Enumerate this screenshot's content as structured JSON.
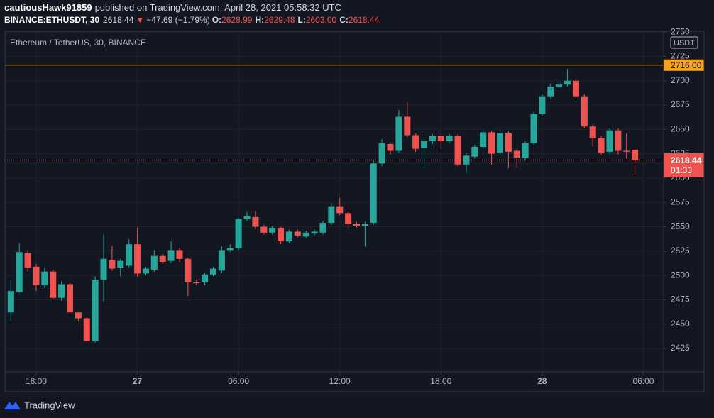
{
  "header": {
    "byline": "cautiousHawk91859",
    "published": "published on TradingView.com, April 28, 2021 05:58:32 UTC",
    "symbol": "BINANCE:ETHUSDT, 30",
    "last": "2618.44",
    "arrow": "▼",
    "change": "−47.69 (−1.79%)",
    "o_label": "O:",
    "o_value": "2628.99",
    "h_label": "H:",
    "h_value": "2629.48",
    "l_label": "L:",
    "l_value": "2603.00",
    "c_label": "C:",
    "c_value": "2618.44"
  },
  "chart_data": {
    "type": "candlestick",
    "title": "Ethereum / TetherUS, 30, BINANCE",
    "y_unit": "USDT",
    "categories": [
      null,
      null,
      null,
      null,
      null,
      null,
      null,
      null,
      null,
      null,
      null,
      null,
      null,
      null,
      null,
      null,
      null,
      null,
      null,
      null,
      null,
      null,
      null,
      null,
      null,
      null,
      null,
      null,
      null,
      null,
      null,
      null,
      null,
      null,
      null,
      null,
      null,
      null,
      null,
      null,
      null,
      null,
      null,
      null,
      null,
      null,
      null,
      null,
      null,
      null,
      null,
      null,
      null,
      null,
      null,
      null,
      null,
      null,
      null,
      null,
      null,
      null,
      null,
      null,
      null,
      null,
      null,
      null,
      null,
      null,
      null,
      null,
      null,
      null,
      null
    ],
    "open": [
      2462,
      2483,
      2523,
      2509,
      2490,
      2504,
      2477,
      2491,
      2462,
      2456,
      2433,
      2495,
      2516,
      2508,
      2510,
      2532,
      2502,
      2506,
      2520,
      2515,
      2526,
      2517,
      2493,
      2493,
      2501,
      2505,
      2526,
      2528,
      2558,
      2560,
      2550,
      2544,
      2549,
      2535,
      2545,
      2540,
      2543,
      2544,
      2554,
      2571,
      2564,
      2553,
      2551,
      2554,
      2615,
      2635,
      2628,
      2663,
      2644,
      2631,
      2638,
      2643,
      2638,
      2643,
      2614,
      2622,
      2632,
      2647,
      2626,
      2646,
      2628,
      2621,
      2636,
      2666,
      2684,
      2694,
      2696,
      2700,
      2684,
      2653,
      2641,
      2627,
      2649,
      2628,
      2628.99
    ],
    "high": [
      2495,
      2533,
      2526,
      2512,
      2508,
      2506,
      2494,
      2492,
      2463,
      2457,
      2499,
      2542,
      2530,
      2517,
      2537,
      2549,
      2509,
      2526,
      2522,
      2535,
      2528,
      2518,
      2495,
      2503,
      2509,
      2530,
      2532,
      2559,
      2565,
      2566,
      2552,
      2551,
      2550,
      2547,
      2547,
      2546,
      2547,
      2556,
      2574,
      2580,
      2566,
      2555,
      2555,
      2618,
      2640,
      2637,
      2670,
      2678,
      2646,
      2645,
      2645,
      2646,
      2645,
      2645,
      2626,
      2634,
      2649,
      2649,
      2650,
      2648,
      2630,
      2638,
      2668,
      2686,
      2697,
      2698,
      2712,
      2702,
      2686,
      2655,
      2643,
      2651,
      2651,
      2646,
      2629.48
    ],
    "low": [
      2453,
      2482,
      2504,
      2484,
      2487,
      2475,
      2474,
      2460,
      2453,
      2430,
      2431,
      2473,
      2505,
      2499,
      2508,
      2499,
      2500,
      2504,
      2512,
      2513,
      2514,
      2479,
      2490,
      2490,
      2499,
      2503,
      2524,
      2526,
      2556,
      2548,
      2542,
      2542,
      2532,
      2533,
      2539,
      2538,
      2541,
      2542,
      2552,
      2562,
      2549,
      2549,
      2530,
      2552,
      2612,
      2624,
      2626,
      2642,
      2627,
      2610,
      2635,
      2630,
      2636,
      2612,
      2605,
      2620,
      2630,
      2614,
      2624,
      2610,
      2610,
      2618,
      2634,
      2664,
      2682,
      2692,
      2694,
      2682,
      2651,
      2632,
      2624,
      2625,
      2624,
      2620,
      2603
    ],
    "close": [
      2484,
      2524,
      2508,
      2490,
      2504,
      2477,
      2491,
      2462,
      2456,
      2433,
      2495,
      2517,
      2507,
      2515,
      2532,
      2502,
      2507,
      2520,
      2514,
      2526,
      2517,
      2493,
      2492,
      2501,
      2507,
      2526,
      2528,
      2558,
      2561,
      2550,
      2544,
      2549,
      2535,
      2545,
      2541,
      2544,
      2545,
      2554,
      2571,
      2564,
      2553,
      2551,
      2553,
      2615,
      2636,
      2628,
      2663,
      2644,
      2630,
      2638,
      2643,
      2638,
      2643,
      2614,
      2623,
      2632,
      2647,
      2625,
      2646,
      2627,
      2621,
      2636,
      2666,
      2684,
      2694,
      2696,
      2700,
      2684,
      2653,
      2641,
      2626,
      2649,
      2628,
      2627,
      2618.44
    ],
    "up_color": "#26a69a",
    "down_color": "#ef5350",
    "xlim": [
      -0.7,
      77.4
    ],
    "xticks": [
      {
        "value": 3,
        "label": "18:00"
      },
      {
        "value": 15,
        "label": "27"
      },
      {
        "value": 27,
        "label": "06:00"
      },
      {
        "value": 39,
        "label": "12:00"
      },
      {
        "value": 51,
        "label": "18:00"
      },
      {
        "value": 63,
        "label": "28"
      },
      {
        "value": 75,
        "label": "06:00"
      }
    ],
    "ylim": [
      2401,
      2750.8
    ],
    "yticks": [
      2425,
      2450,
      2475,
      2500,
      2525,
      2550,
      2575,
      2600,
      2625,
      2650,
      2675,
      2700,
      2725,
      2750
    ],
    "grid": true,
    "price_line": {
      "value": 2716,
      "label": "2716.00",
      "color": "#f7a21b"
    },
    "countdown": "01:33"
  },
  "footer": {
    "brand": "TradingView"
  }
}
